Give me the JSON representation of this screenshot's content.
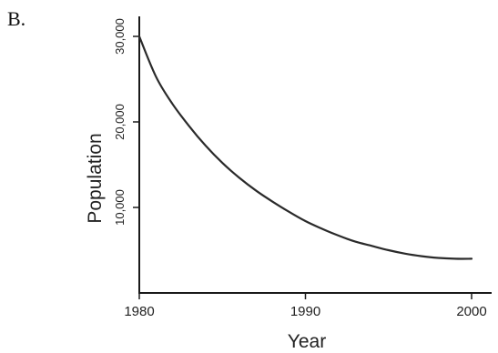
{
  "panel_label": "B.",
  "chart_data": {
    "type": "line",
    "title": "",
    "xlabel": "Year",
    "ylabel": "Population",
    "xlim": [
      1980,
      2001
    ],
    "ylim": [
      0,
      32000
    ],
    "grid": false,
    "x_ticks": [
      1980,
      1990,
      2000
    ],
    "x_tick_labels": [
      "1980",
      "1990",
      "2000"
    ],
    "y_ticks": [
      10000,
      20000,
      30000
    ],
    "y_tick_labels": [
      "10,000",
      "20,000",
      "30,000"
    ],
    "series": [
      {
        "color": "#2a2a2a",
        "x": [
          1980,
          1981,
          1982,
          1983,
          1984,
          1985,
          1986,
          1987,
          1988,
          1989,
          1990,
          1991,
          1992,
          1993,
          1994,
          1995,
          1996,
          1997,
          1998,
          1999,
          2000
        ],
        "values": [
          30000,
          25300,
          22100,
          19500,
          17200,
          15200,
          13500,
          12000,
          10700,
          9500,
          8400,
          7500,
          6700,
          6000,
          5500,
          5000,
          4600,
          4300,
          4100,
          4000,
          4000
        ]
      }
    ]
  }
}
